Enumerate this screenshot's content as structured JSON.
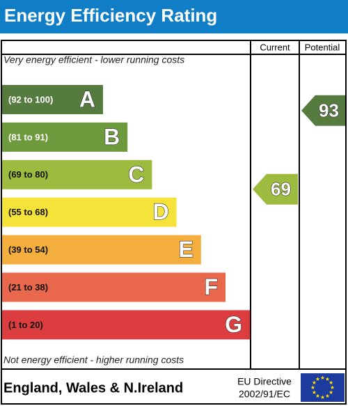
{
  "chart_data": {
    "type": "epc",
    "title": "Energy Efficiency Rating",
    "column_headers": [
      "Current",
      "Potential"
    ],
    "top_note": "Very energy efficient - lower running costs",
    "bottom_note": "Not energy efficient - higher running costs",
    "bands": [
      {
        "letter": "A",
        "label": "(92 to 100)",
        "min": 92,
        "max": 100,
        "color": "#557b3f"
      },
      {
        "letter": "B",
        "label": "(81 to 91)",
        "min": 81,
        "max": 91,
        "color": "#6c9a3c"
      },
      {
        "letter": "C",
        "label": "(69 to 80)",
        "min": 69,
        "max": 80,
        "color": "#9dbb3e"
      },
      {
        "letter": "D",
        "label": "(55 to 68)",
        "min": 55,
        "max": 68,
        "color": "#f6e33a"
      },
      {
        "letter": "E",
        "label": "(39 to 54)",
        "min": 39,
        "max": 54,
        "color": "#f3ae3e"
      },
      {
        "letter": "F",
        "label": "(21 to 38)",
        "min": 21,
        "max": 38,
        "color": "#e9674a"
      },
      {
        "letter": "G",
        "label": "(1 to 20)",
        "min": 1,
        "max": 20,
        "color": "#dc3d3f"
      }
    ],
    "current": 69,
    "potential": 93,
    "region": "England, Wales & N.Ireland",
    "directive": [
      "EU Directive",
      "2002/91/EC"
    ]
  }
}
